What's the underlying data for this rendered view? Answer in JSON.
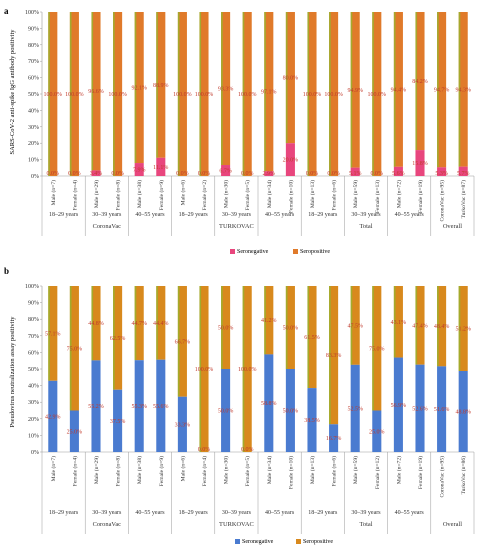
{
  "colors": {
    "seronegative_a": "#e8467d",
    "seropositive_a": "#e07a2a",
    "group_a": "#9ab22f",
    "baseline_a": "#6b86d8",
    "seronegative_b": "#4a7bd0",
    "seropositive_b": "#d8891d",
    "group_b": "#9ab22f",
    "baseline_b": "#f07a9a",
    "pct_label": "#c0392b"
  },
  "chart_data": [
    {
      "panel": "a",
      "type": "bar",
      "stacked": true,
      "ylabel": "SARS-CoV-2 anti-spike IgG antibody positivity",
      "ylim": [
        0,
        100
      ],
      "yticks": [
        "0%",
        "10%",
        "20%",
        "30%",
        "40%",
        "50%",
        "60%",
        "70%",
        "80%",
        "90%",
        "100%"
      ],
      "categories": [
        "Male (n=7)",
        "Female (n=4)",
        "Male (n=29)",
        "Female (n=8)",
        "Male (n=38)",
        "Female (n=9)",
        "Male (n=6)",
        "Female (n=2)",
        "Male (n=30)",
        "Female (n=5)",
        "Male (n=34)",
        "Female (n=10)",
        "Male (n=13)",
        "Female (n=6)",
        "Male (n=59)",
        "Female (n=13)",
        "Male (n=72)",
        "Female (n=19)",
        "CoronaVac (n=95)",
        "TurkoVac (n=87)"
      ],
      "series": [
        {
          "name": "Seronegative",
          "values": [
            0,
            0,
            3.4,
            0,
            7.9,
            11.1,
            0,
            0,
            6.7,
            0,
            2.9,
            20,
            0,
            0,
            5.1,
            0,
            5.6,
            15.8,
            5.3,
            5.7
          ]
        },
        {
          "name": "Seropositive",
          "values": [
            100,
            100,
            96.6,
            100,
            92.1,
            88.9,
            100,
            100,
            93.3,
            100,
            97.1,
            80,
            100,
            100,
            94.9,
            100,
            94.4,
            84.2,
            94.7,
            94.3
          ]
        }
      ],
      "pos_labels": [
        "100.0%",
        "100.0%",
        "96.6%",
        "100.0%",
        "92.1%",
        "88.9%",
        "100.0%",
        "100.0%",
        "93.3%",
        "100.0%",
        "97.1%",
        "80.0%",
        "100.0%",
        "100.0%",
        "94.9%",
        "100.0%",
        "94.4%",
        "84.2%",
        "94.7%",
        "94.3%"
      ],
      "neg_labels": [
        "0.0%",
        "0.0%",
        "3.4%",
        "0.0%",
        "7.9%",
        "11.1%",
        "0.0%",
        "0.0%",
        "6.7%",
        "0.0%",
        "2.9%",
        "20.0%",
        "0.0%",
        "0.0%",
        "5.1%",
        "0.0%",
        "5.6%",
        "15.8%",
        "5.3%",
        "5.7%"
      ],
      "age_groups": [
        "18–29 years",
        "30–39 years",
        "40–55 years",
        "18–29 years",
        "30–39 years",
        "40–55 years",
        "18–29 years",
        "30–39 years",
        "40–55 years"
      ],
      "vaccines": [
        "CoronaVac",
        "TURKOVAC",
        "Total",
        "Overall"
      ],
      "legend": [
        "Seronegative",
        "Seropositive"
      ],
      "legend_position": "bottom"
    },
    {
      "panel": "b",
      "type": "bar",
      "stacked": true,
      "ylabel": "Pseudovirus neutralization assay positivity",
      "ylim": [
        0,
        100
      ],
      "yticks": [
        "0%",
        "10%",
        "20%",
        "30%",
        "40%",
        "50%",
        "60%",
        "70%",
        "80%",
        "90%",
        "100%"
      ],
      "categories": [
        "Male (n=7)",
        "Female (n=4)",
        "Male (n=29)",
        "Female (n=8)",
        "Male (n=38)",
        "Female (n=9)",
        "Male (n=6)",
        "Female (n=4)",
        "Male (n=30)",
        "Female (n=5)",
        "Male (n=34)",
        "Female (n=10)",
        "Male (n=13)",
        "Female (n=6)",
        "Male (n=59)",
        "Female (n=12)",
        "Male (n=72)",
        "Female (n=19)",
        "CoronaVac (n=95)",
        "TurkoVac (n=86)"
      ],
      "series": [
        {
          "name": "Seronegative",
          "values": [
            42.9,
            25,
            55.2,
            37.5,
            55.3,
            55.6,
            33.3,
            0,
            50,
            0,
            58.8,
            50,
            38.5,
            16.7,
            52.5,
            25,
            56.9,
            52.6,
            51.6,
            48.8
          ]
        },
        {
          "name": "Seropositive",
          "values": [
            57.1,
            75,
            44.8,
            62.5,
            44.7,
            44.4,
            66.7,
            100,
            50,
            100,
            41.2,
            50,
            61.5,
            83.3,
            47.5,
            75,
            43.1,
            47.4,
            48.4,
            51.2
          ]
        }
      ],
      "pos_labels": [
        "57.1%",
        "75.0%",
        "44.8%",
        "62.5%",
        "44.7%",
        "44.4%",
        "66.7%",
        "100.0%",
        "50.0%",
        "100.0%",
        "41.2%",
        "50.0%",
        "61.5%",
        "83.3%",
        "47.5%",
        "75.0%",
        "43.1%",
        "47.4%",
        "48.4%",
        "51.2%"
      ],
      "neg_labels": [
        "42.9%",
        "25.0%",
        "55.2%",
        "37.5%",
        "55.3%",
        "55.6%",
        "33.3%",
        "0.0%",
        "50.0%",
        "0.0%",
        "58.8%",
        "50.0%",
        "38.5%",
        "16.7%",
        "52.5%",
        "25.0%",
        "56.9%",
        "52.6%",
        "51.6%",
        "48.8%"
      ],
      "age_groups": [
        "18–29 years",
        "30–39 years",
        "40–55 years",
        "18–29 years",
        "30–39 years",
        "40–55 years",
        "18–29 years",
        "30–39 years",
        "40–55 years"
      ],
      "vaccines": [
        "CoronaVac",
        "TURKOVAC",
        "Total",
        "Overall"
      ],
      "legend": [
        "Seronegative",
        "Seropositive"
      ],
      "legend_position": "bottom"
    }
  ]
}
